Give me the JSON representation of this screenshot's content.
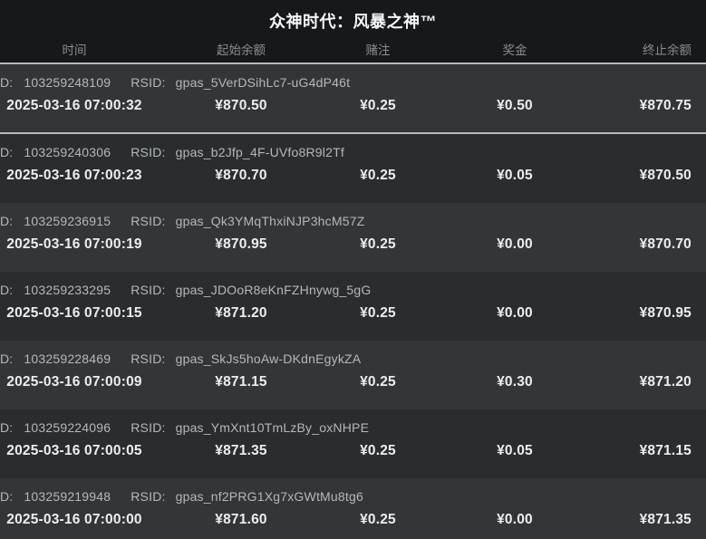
{
  "title": "众神时代：风暴之神™",
  "columns": [
    "时间",
    "起始余额",
    "赌注",
    "奖金",
    "终止余额"
  ],
  "row_labels": {
    "id": "D:",
    "rsid": "RSID:"
  },
  "colors": {
    "background": "#161819",
    "row_light": "#333638",
    "row_dark": "#2a2d2e",
    "separator": "#b7bbbc",
    "header_text": "#8b8e90",
    "primary_text": "#eceeef",
    "secondary_text": "#b4b8ba"
  },
  "rows": [
    {
      "id": "103259248109",
      "rsid": "gpas_5VerDSihLc7-uG4dP46t",
      "time": "2025-03-16 07:00:32",
      "start": "¥870.50",
      "bet": "¥0.25",
      "win": "¥0.50",
      "end": "¥870.75"
    },
    {
      "id": "103259240306",
      "rsid": "gpas_b2Jfp_4F-UVfo8R9l2Tf",
      "time": "2025-03-16 07:00:23",
      "start": "¥870.70",
      "bet": "¥0.25",
      "win": "¥0.05",
      "end": "¥870.50"
    },
    {
      "id": "103259236915",
      "rsid": "gpas_Qk3YMqThxiNJP3hcM57Z",
      "time": "2025-03-16 07:00:19",
      "start": "¥870.95",
      "bet": "¥0.25",
      "win": "¥0.00",
      "end": "¥870.70"
    },
    {
      "id": "103259233295",
      "rsid": "gpas_JDOoR8eKnFZHnywg_5gG",
      "time": "2025-03-16 07:00:15",
      "start": "¥871.20",
      "bet": "¥0.25",
      "win": "¥0.00",
      "end": "¥870.95"
    },
    {
      "id": "103259228469",
      "rsid": "gpas_SkJs5hoAw-DKdnEgykZA",
      "time": "2025-03-16 07:00:09",
      "start": "¥871.15",
      "bet": "¥0.25",
      "win": "¥0.30",
      "end": "¥871.20"
    },
    {
      "id": "103259224096",
      "rsid": "gpas_YmXnt10TmLzBy_oxNHPE",
      "time": "2025-03-16 07:00:05",
      "start": "¥871.35",
      "bet": "¥0.25",
      "win": "¥0.05",
      "end": "¥871.15"
    },
    {
      "id": "103259219948",
      "rsid": "gpas_nf2PRG1Xg7xGWtMu8tg6",
      "time": "2025-03-16 07:00:00",
      "start": "¥871.60",
      "bet": "¥0.25",
      "win": "¥0.00",
      "end": "¥871.35"
    }
  ]
}
